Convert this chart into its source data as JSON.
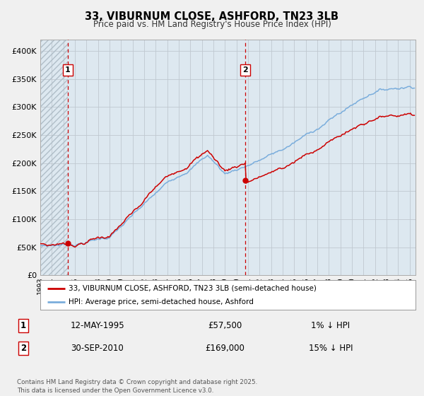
{
  "title_line1": "33, VIBURNUM CLOSE, ASHFORD, TN23 3LB",
  "title_line2": "Price paid vs. HM Land Registry's House Price Index (HPI)",
  "ylim": [
    0,
    420000
  ],
  "yticks": [
    0,
    50000,
    100000,
    150000,
    200000,
    250000,
    300000,
    350000,
    400000
  ],
  "xlim_start": 1993.0,
  "xlim_end": 2025.5,
  "xticks": [
    1993,
    1994,
    1995,
    1996,
    1997,
    1998,
    1999,
    2000,
    2001,
    2002,
    2003,
    2004,
    2005,
    2006,
    2007,
    2008,
    2009,
    2010,
    2011,
    2012,
    2013,
    2014,
    2015,
    2016,
    2017,
    2018,
    2019,
    2020,
    2021,
    2022,
    2023,
    2024,
    2025
  ],
  "bg_color": "#f0f0f0",
  "plot_bg_color": "#dde8f0",
  "hatch_color": "#c8d8e8",
  "grid_color": "#c0c8d0",
  "red_line_color": "#cc0000",
  "blue_line_color": "#7aaddc",
  "marker1_date": 1995.36,
  "marker1_value": 57500,
  "marker2_date": 2010.75,
  "marker2_value": 169000,
  "legend_label_red": "33, VIBURNUM CLOSE, ASHFORD, TN23 3LB (semi-detached house)",
  "legend_label_blue": "HPI: Average price, semi-detached house, Ashford",
  "info1_num": "1",
  "info1_date": "12-MAY-1995",
  "info1_price": "£57,500",
  "info1_hpi": "1% ↓ HPI",
  "info2_num": "2",
  "info2_date": "30-SEP-2010",
  "info2_price": "£169,000",
  "info2_hpi": "15% ↓ HPI",
  "footer": "Contains HM Land Registry data © Crown copyright and database right 2025.\nThis data is licensed under the Open Government Licence v3.0."
}
